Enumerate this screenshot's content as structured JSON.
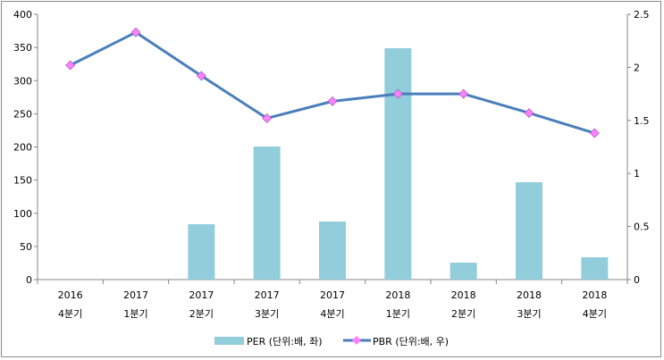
{
  "chart_data": {
    "type": "bar+line",
    "categories": [
      [
        "2016",
        "4분기"
      ],
      [
        "2017",
        "1분기"
      ],
      [
        "2017",
        "2분기"
      ],
      [
        "2017",
        "3분기"
      ],
      [
        "2017",
        "4분기"
      ],
      [
        "2018",
        "1분기"
      ],
      [
        "2018",
        "2분기"
      ],
      [
        "2018",
        "3분기"
      ],
      [
        "2018",
        "4분기"
      ]
    ],
    "series": [
      {
        "name": "PER (단위:배, 좌)",
        "type": "bar",
        "axis": "left",
        "color": "#92cddc",
        "values": [
          null,
          null,
          83.5,
          200.7,
          87.5,
          348.8,
          25.6,
          146.8,
          33.7
        ]
      },
      {
        "name": "PBR (단위:배, 우)",
        "type": "line",
        "axis": "right",
        "color": "#4a7ebb",
        "marker_color": "#ff80ff",
        "values": [
          2.02,
          2.33,
          1.92,
          1.52,
          1.68,
          1.75,
          1.75,
          1.57,
          1.38
        ]
      }
    ],
    "left_axis": {
      "ylim": [
        0,
        400
      ],
      "ticks": [
        "0",
        "50",
        "100",
        "150",
        "200",
        "250",
        "300",
        "350",
        "400"
      ]
    },
    "right_axis": {
      "ylim": [
        0,
        2.5
      ],
      "ticks": [
        "0",
        "0.5",
        "1",
        "1.5",
        "2",
        "2.5"
      ]
    },
    "grid": false,
    "legend": "bottom"
  }
}
